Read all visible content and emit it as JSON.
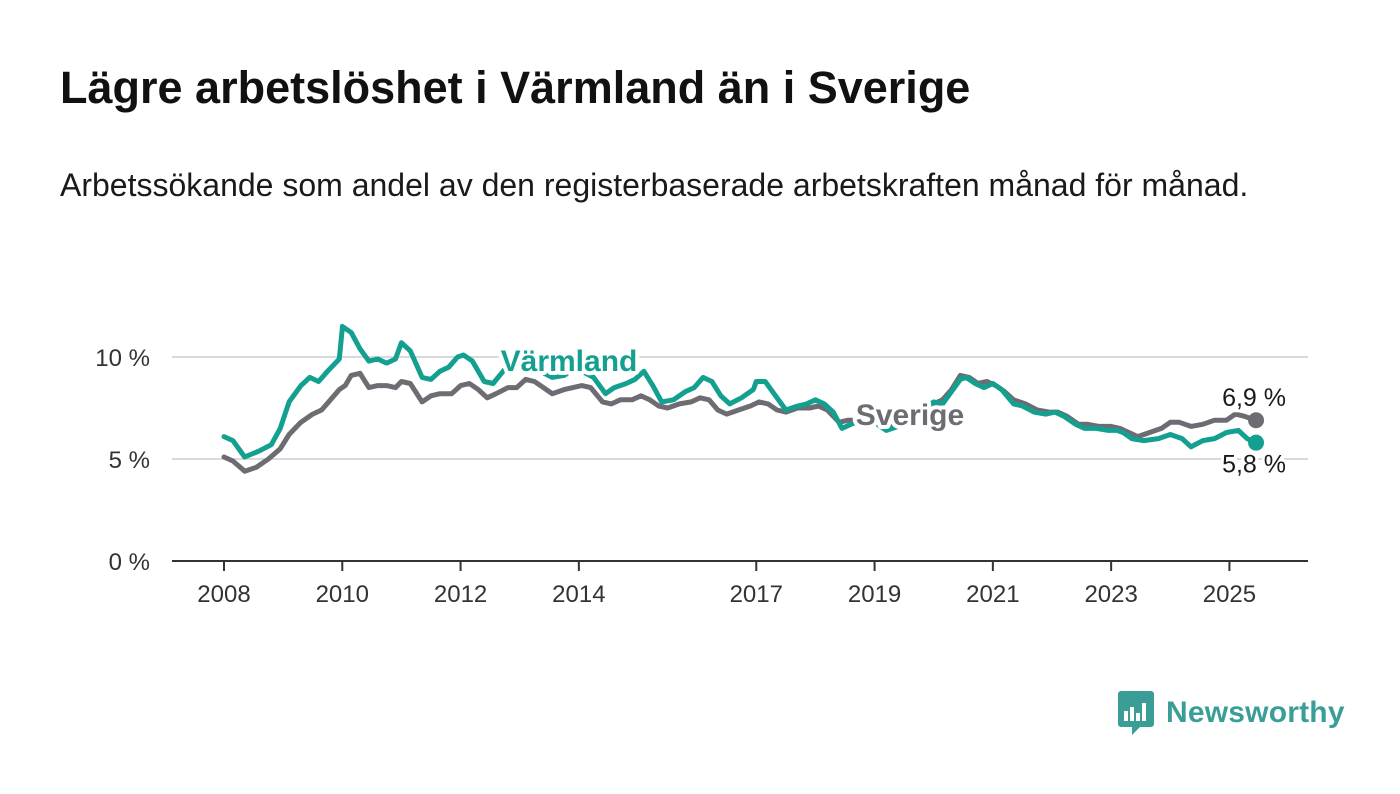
{
  "header": {
    "title": "Lägre arbetslöshet i Värmland än i Sverige",
    "subtitle": "Arbetssökande som andel av den registerbaserade arbetskraften månad för månad."
  },
  "brand": {
    "name": "Newsworthy",
    "icon": "newsworthy-logo-icon",
    "color": "#3a9e97"
  },
  "chart_data": {
    "type": "line",
    "xlabel": "",
    "ylabel": "",
    "ylim": [
      0,
      12
    ],
    "xlim": [
      2008,
      2025.5
    ],
    "x_ticks": [
      {
        "value": 2008,
        "label": "2008"
      },
      {
        "value": 2010,
        "label": "2010"
      },
      {
        "value": 2012,
        "label": "2012"
      },
      {
        "value": 2014,
        "label": "2014"
      },
      {
        "value": 2017,
        "label": "2017"
      },
      {
        "value": 2019,
        "label": "2019"
      },
      {
        "value": 2021,
        "label": "2021"
      },
      {
        "value": 2023,
        "label": "2023"
      },
      {
        "value": 2025,
        "label": "2025"
      }
    ],
    "y_ticks": [
      {
        "value": 0,
        "label": "0 %"
      },
      {
        "value": 5,
        "label": "5 %"
      },
      {
        "value": 10,
        "label": "10 %"
      }
    ],
    "grid": true,
    "legend": "inline labels",
    "series": [
      {
        "name": "Värmland",
        "color": "#14a090",
        "label_at": 2014.0,
        "end_label": "5,8 %",
        "points": [
          [
            2008.0,
            6.1
          ],
          [
            2008.15,
            5.9
          ],
          [
            2008.35,
            5.1
          ],
          [
            2008.6,
            5.4
          ],
          [
            2008.8,
            5.7
          ],
          [
            2008.95,
            6.5
          ],
          [
            2009.1,
            7.8
          ],
          [
            2009.3,
            8.6
          ],
          [
            2009.45,
            9.0
          ],
          [
            2009.6,
            8.8
          ],
          [
            2009.75,
            9.3
          ],
          [
            2009.95,
            9.9
          ],
          [
            2010.0,
            11.4
          ],
          [
            2010.0,
            11.5
          ],
          [
            2010.15,
            11.2
          ],
          [
            2010.3,
            10.4
          ],
          [
            2010.45,
            9.8
          ],
          [
            2010.6,
            9.9
          ],
          [
            2010.75,
            9.7
          ],
          [
            2010.9,
            9.9
          ],
          [
            2011.0,
            10.7
          ],
          [
            2011.15,
            10.3
          ],
          [
            2011.35,
            9.0
          ],
          [
            2011.5,
            8.9
          ],
          [
            2011.65,
            9.3
          ],
          [
            2011.8,
            9.5
          ],
          [
            2011.95,
            10.0
          ],
          [
            2012.05,
            10.1
          ],
          [
            2012.2,
            9.8
          ],
          [
            2012.4,
            8.8
          ],
          [
            2012.55,
            8.7
          ],
          [
            2012.75,
            9.4
          ],
          [
            2012.95,
            9.8
          ],
          [
            2013.15,
            9.6
          ],
          [
            2013.35,
            9.3
          ],
          [
            2013.55,
            9.0
          ],
          [
            2013.75,
            9.1
          ],
          [
            2013.9,
            9.4
          ],
          [
            2014.05,
            9.3
          ],
          [
            2014.25,
            9.0
          ],
          [
            2014.45,
            8.2
          ],
          [
            2014.6,
            8.5
          ],
          [
            2014.8,
            8.7
          ],
          [
            2014.95,
            8.9
          ],
          [
            2015.1,
            9.3
          ],
          [
            2015.25,
            8.6
          ],
          [
            2015.4,
            7.8
          ],
          [
            2015.6,
            7.9
          ],
          [
            2015.8,
            8.3
          ],
          [
            2015.95,
            8.5
          ],
          [
            2016.1,
            9.0
          ],
          [
            2016.25,
            8.8
          ],
          [
            2016.4,
            8.1
          ],
          [
            2016.55,
            7.7
          ],
          [
            2016.75,
            8.0
          ],
          [
            2016.95,
            8.4
          ],
          [
            2017.0,
            8.8
          ],
          [
            2017.15,
            8.8
          ],
          [
            2017.35,
            8.0
          ],
          [
            2017.5,
            7.4
          ],
          [
            2017.7,
            7.6
          ],
          [
            2017.85,
            7.7
          ],
          [
            2018.0,
            7.9
          ],
          [
            2018.15,
            7.7
          ],
          [
            2018.3,
            7.3
          ],
          [
            2018.45,
            6.5
          ],
          [
            2018.6,
            6.7
          ],
          [
            2018.8,
            6.9
          ],
          [
            2019.0,
            6.8
          ],
          [
            2019.2,
            6.4
          ],
          [
            2019.4,
            6.6
          ],
          [
            2019.6,
            7.0
          ],
          [
            2019.8,
            7.4
          ],
          [
            2020.0,
            7.8
          ],
          [
            2020.15,
            7.7
          ],
          [
            2020.3,
            8.3
          ],
          [
            2020.45,
            8.9
          ],
          [
            2020.55,
            9.0
          ],
          [
            2020.7,
            8.7
          ],
          [
            2020.85,
            8.5
          ],
          [
            2021.0,
            8.7
          ],
          [
            2021.15,
            8.4
          ],
          [
            2021.35,
            7.7
          ],
          [
            2021.5,
            7.6
          ],
          [
            2021.7,
            7.3
          ],
          [
            2021.9,
            7.2
          ],
          [
            2022.05,
            7.3
          ],
          [
            2022.2,
            7.1
          ],
          [
            2022.4,
            6.7
          ],
          [
            2022.55,
            6.5
          ],
          [
            2022.75,
            6.5
          ],
          [
            2022.95,
            6.4
          ],
          [
            2023.1,
            6.4
          ],
          [
            2023.2,
            6.3
          ],
          [
            2023.35,
            6.0
          ],
          [
            2023.55,
            5.9
          ],
          [
            2023.8,
            6.0
          ],
          [
            2024.0,
            6.2
          ],
          [
            2024.2,
            6.0
          ],
          [
            2024.35,
            5.6
          ],
          [
            2024.55,
            5.9
          ],
          [
            2024.75,
            6.0
          ],
          [
            2024.95,
            6.3
          ],
          [
            2025.15,
            6.4
          ],
          [
            2025.3,
            6.0
          ],
          [
            2025.45,
            5.8
          ]
        ]
      },
      {
        "name": "Sverige",
        "color": "#6e6c73",
        "label_at": 2019.0,
        "end_label": "6,9 %",
        "points": [
          [
            2008.0,
            5.1
          ],
          [
            2008.15,
            4.9
          ],
          [
            2008.35,
            4.4
          ],
          [
            2008.55,
            4.6
          ],
          [
            2008.75,
            5.0
          ],
          [
            2008.95,
            5.5
          ],
          [
            2009.1,
            6.2
          ],
          [
            2009.3,
            6.8
          ],
          [
            2009.5,
            7.2
          ],
          [
            2009.65,
            7.4
          ],
          [
            2009.8,
            7.9
          ],
          [
            2009.95,
            8.4
          ],
          [
            2010.05,
            8.6
          ],
          [
            2010.15,
            9.1
          ],
          [
            2010.3,
            9.2
          ],
          [
            2010.45,
            8.5
          ],
          [
            2010.6,
            8.6
          ],
          [
            2010.75,
            8.6
          ],
          [
            2010.9,
            8.5
          ],
          [
            2011.0,
            8.8
          ],
          [
            2011.15,
            8.7
          ],
          [
            2011.35,
            7.8
          ],
          [
            2011.5,
            8.1
          ],
          [
            2011.65,
            8.2
          ],
          [
            2011.85,
            8.2
          ],
          [
            2012.0,
            8.6
          ],
          [
            2012.15,
            8.7
          ],
          [
            2012.3,
            8.4
          ],
          [
            2012.45,
            8.0
          ],
          [
            2012.6,
            8.2
          ],
          [
            2012.8,
            8.5
          ],
          [
            2012.95,
            8.5
          ],
          [
            2013.1,
            8.9
          ],
          [
            2013.25,
            8.8
          ],
          [
            2013.4,
            8.5
          ],
          [
            2013.55,
            8.2
          ],
          [
            2013.75,
            8.4
          ],
          [
            2013.9,
            8.5
          ],
          [
            2014.05,
            8.6
          ],
          [
            2014.2,
            8.5
          ],
          [
            2014.4,
            7.8
          ],
          [
            2014.55,
            7.7
          ],
          [
            2014.7,
            7.9
          ],
          [
            2014.9,
            7.9
          ],
          [
            2015.05,
            8.1
          ],
          [
            2015.2,
            7.9
          ],
          [
            2015.35,
            7.6
          ],
          [
            2015.5,
            7.5
          ],
          [
            2015.7,
            7.7
          ],
          [
            2015.9,
            7.8
          ],
          [
            2016.05,
            8.0
          ],
          [
            2016.2,
            7.9
          ],
          [
            2016.35,
            7.4
          ],
          [
            2016.5,
            7.2
          ],
          [
            2016.7,
            7.4
          ],
          [
            2016.9,
            7.6
          ],
          [
            2017.05,
            7.8
          ],
          [
            2017.2,
            7.7
          ],
          [
            2017.35,
            7.4
          ],
          [
            2017.5,
            7.3
          ],
          [
            2017.7,
            7.5
          ],
          [
            2017.9,
            7.5
          ],
          [
            2018.05,
            7.6
          ],
          [
            2018.2,
            7.4
          ],
          [
            2018.4,
            6.8
          ],
          [
            2018.55,
            6.9
          ],
          [
            2018.75,
            6.9
          ],
          [
            2019.0,
            6.9
          ],
          [
            2019.2,
            6.6
          ],
          [
            2019.4,
            6.7
          ],
          [
            2019.6,
            7.0
          ],
          [
            2019.8,
            7.3
          ],
          [
            2020.0,
            7.7
          ],
          [
            2020.15,
            7.9
          ],
          [
            2020.3,
            8.4
          ],
          [
            2020.45,
            9.1
          ],
          [
            2020.6,
            9.0
          ],
          [
            2020.75,
            8.7
          ],
          [
            2020.9,
            8.8
          ],
          [
            2021.05,
            8.6
          ],
          [
            2021.2,
            8.3
          ],
          [
            2021.35,
            7.9
          ],
          [
            2021.55,
            7.7
          ],
          [
            2021.75,
            7.4
          ],
          [
            2021.95,
            7.3
          ],
          [
            2022.1,
            7.3
          ],
          [
            2022.25,
            7.1
          ],
          [
            2022.45,
            6.7
          ],
          [
            2022.6,
            6.7
          ],
          [
            2022.8,
            6.6
          ],
          [
            2023.0,
            6.6
          ],
          [
            2023.15,
            6.5
          ],
          [
            2023.3,
            6.3
          ],
          [
            2023.45,
            6.1
          ],
          [
            2023.65,
            6.3
          ],
          [
            2023.85,
            6.5
          ],
          [
            2024.0,
            6.8
          ],
          [
            2024.15,
            6.8
          ],
          [
            2024.35,
            6.6
          ],
          [
            2024.55,
            6.7
          ],
          [
            2024.75,
            6.9
          ],
          [
            2024.95,
            6.9
          ],
          [
            2025.1,
            7.2
          ],
          [
            2025.25,
            7.1
          ],
          [
            2025.35,
            7.0
          ],
          [
            2025.45,
            6.9
          ]
        ]
      }
    ]
  }
}
